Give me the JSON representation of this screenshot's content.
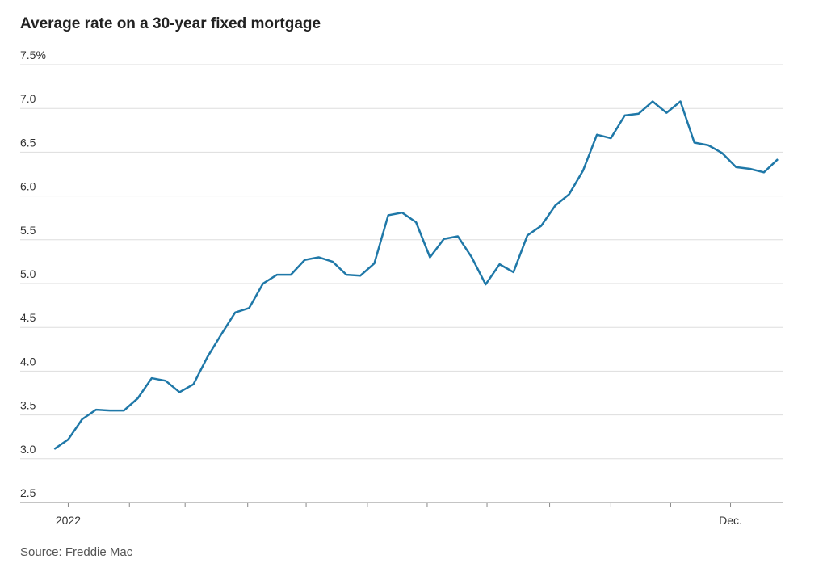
{
  "chart_data": {
    "type": "line",
    "title": "Average rate on a 30-year fixed mortgage",
    "source": "Source: Freddie Mac",
    "x": [
      0,
      1,
      2,
      3,
      4,
      5,
      6,
      7,
      8,
      9,
      10,
      11,
      12,
      13,
      14,
      15,
      16,
      17,
      18,
      19,
      20,
      21,
      22,
      23,
      24,
      25,
      26,
      27,
      28,
      29,
      30,
      31,
      32,
      33,
      34,
      35,
      36,
      37,
      38,
      39,
      40,
      41,
      42,
      43,
      44,
      45,
      46,
      47,
      48,
      49,
      50,
      51,
      52
    ],
    "series": [
      {
        "name": "30-year fixed",
        "color": "#1f78a8",
        "values": [
          3.11,
          3.22,
          3.45,
          3.56,
          3.55,
          3.55,
          3.69,
          3.92,
          3.89,
          3.76,
          3.85,
          4.16,
          4.42,
          4.67,
          4.72,
          5.0,
          5.1,
          5.1,
          5.27,
          5.3,
          5.25,
          5.1,
          5.09,
          5.23,
          5.78,
          5.81,
          5.7,
          5.3,
          5.51,
          5.54,
          5.3,
          4.99,
          5.22,
          5.13,
          5.55,
          5.66,
          5.89,
          6.02,
          6.29,
          6.7,
          6.66,
          6.92,
          6.94,
          7.08,
          6.95,
          7.08,
          6.61,
          6.58,
          6.49,
          6.33,
          6.31,
          6.27,
          6.42
        ]
      }
    ],
    "xlim": [
      -1,
      52.4
    ],
    "xticks": [
      {
        "value": 1,
        "label": "2022"
      },
      5.4,
      9.4,
      13.9,
      18.1,
      22.5,
      26.8,
      31.1,
      35.6,
      40,
      44.3,
      {
        "value": 48.6,
        "label": "Dec."
      }
    ],
    "ylim": [
      2.5,
      7.5
    ],
    "yticks": [
      2.5,
      {
        "value": 3,
        "label": "3.0"
      },
      3.5,
      {
        "value": 4,
        "label": "4.0"
      },
      4.5,
      {
        "value": 5,
        "label": "5.0"
      },
      5.5,
      {
        "value": 6,
        "label": "6.0"
      },
      6.5,
      {
        "value": 7,
        "label": "7.0"
      },
      {
        "value": 7.5,
        "label": "7.5%"
      }
    ],
    "grid": true
  }
}
